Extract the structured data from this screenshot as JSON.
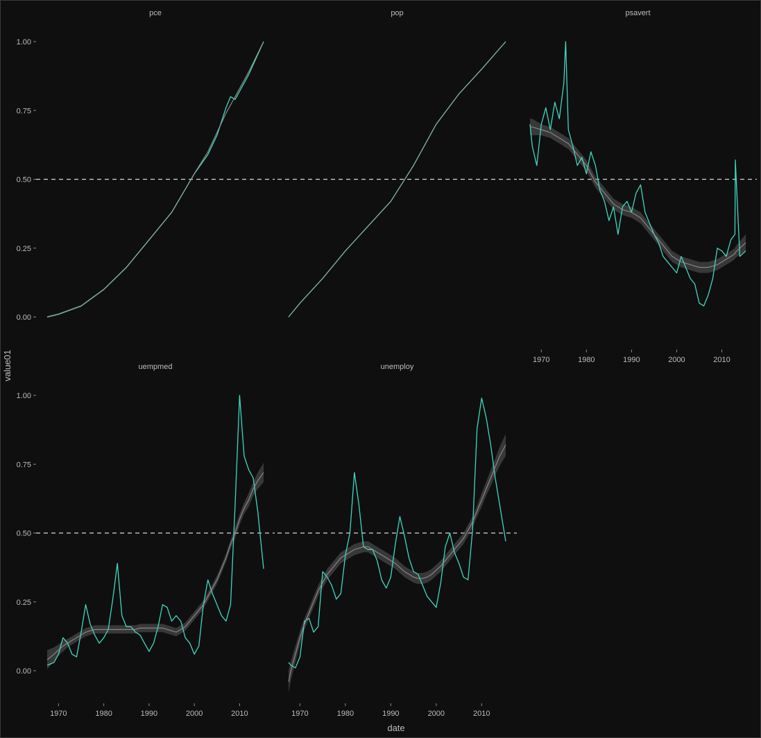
{
  "chart_data": {
    "type": "line",
    "xlabel": "date",
    "ylabel": "value01",
    "ylim": [
      0,
      1
    ],
    "y_ticks": [
      0,
      0.25,
      0.5,
      0.75,
      1
    ],
    "y_tick_labels": [
      "0.00",
      "0.25",
      "0.50",
      "0.75",
      "1.00"
    ],
    "x_ticks": [
      1970,
      1980,
      1990,
      2000,
      2010
    ],
    "x_tick_labels": [
      "1970",
      "1980",
      "1990",
      "2000",
      "2010"
    ],
    "xlim": [
      1967.5,
      2015.3
    ],
    "reference_line_y": 0.5,
    "grid": false,
    "legend": "none",
    "colors": {
      "background": "#0f0f0f",
      "line": "#3fd9c0",
      "smooth": "#9a9a9a",
      "band": "#6a6a6a",
      "ref": "#d9d9d9",
      "text": "#bdbdbd"
    },
    "panels": [
      {
        "strip": "pce",
        "x": [
          1967.5,
          1970,
          1975,
          1980,
          1985,
          1990,
          1995,
          2000,
          2003,
          2005,
          2007,
          2008,
          2009,
          2010,
          2012,
          2015.3
        ],
        "values": [
          0.0,
          0.01,
          0.04,
          0.1,
          0.18,
          0.28,
          0.38,
          0.52,
          0.59,
          0.66,
          0.76,
          0.8,
          0.79,
          0.82,
          0.88,
          1.0
        ],
        "smooth": [
          0.0,
          0.01,
          0.04,
          0.1,
          0.18,
          0.28,
          0.38,
          0.52,
          0.6,
          0.67,
          0.74,
          0.77,
          0.8,
          0.83,
          0.89,
          1.0
        ],
        "band": [
          0.003,
          0.003,
          0.003,
          0.003,
          0.003,
          0.003,
          0.003,
          0.003,
          0.003,
          0.003,
          0.003,
          0.003,
          0.003,
          0.003,
          0.003,
          0.003
        ]
      },
      {
        "strip": "pop",
        "x": [
          1967.5,
          1970,
          1975,
          1980,
          1985,
          1990,
          1995,
          2000,
          2005,
          2010,
          2015.3
        ],
        "values": [
          0.0,
          0.05,
          0.14,
          0.24,
          0.33,
          0.42,
          0.55,
          0.7,
          0.81,
          0.9,
          1.0
        ],
        "smooth": [
          0.0,
          0.05,
          0.14,
          0.24,
          0.33,
          0.42,
          0.55,
          0.7,
          0.81,
          0.9,
          1.0
        ],
        "band": [
          0.002,
          0.002,
          0.002,
          0.002,
          0.002,
          0.002,
          0.002,
          0.002,
          0.002,
          0.002,
          0.002
        ]
      },
      {
        "strip": "psavert",
        "x": [
          1967.5,
          1968,
          1969,
          1970,
          1971,
          1972,
          1973,
          1974,
          1975,
          1975.4,
          1976,
          1977,
          1978,
          1979,
          1980,
          1981,
          1982,
          1983,
          1984,
          1985,
          1986,
          1987,
          1988,
          1989,
          1990,
          1991,
          1992,
          1993,
          1994,
          1995,
          1996,
          1997,
          1998,
          1999,
          2000,
          2001,
          2002,
          2003,
          2004,
          2005,
          2006,
          2007,
          2008,
          2009,
          2010,
          2011,
          2012,
          2012.9,
          2013,
          2014,
          2015.3
        ],
        "values": [
          0.7,
          0.62,
          0.55,
          0.7,
          0.76,
          0.68,
          0.78,
          0.72,
          0.85,
          1.0,
          0.68,
          0.62,
          0.55,
          0.58,
          0.52,
          0.6,
          0.55,
          0.46,
          0.42,
          0.35,
          0.4,
          0.3,
          0.4,
          0.42,
          0.38,
          0.45,
          0.48,
          0.38,
          0.34,
          0.3,
          0.27,
          0.22,
          0.2,
          0.18,
          0.16,
          0.22,
          0.18,
          0.14,
          0.12,
          0.05,
          0.04,
          0.08,
          0.14,
          0.25,
          0.24,
          0.22,
          0.28,
          0.3,
          0.57,
          0.22,
          0.24
        ],
        "smooth": [
          0.69,
          0.69,
          0.685,
          0.68,
          0.675,
          0.67,
          0.66,
          0.65,
          0.64,
          0.635,
          0.63,
          0.61,
          0.59,
          0.57,
          0.55,
          0.52,
          0.49,
          0.47,
          0.45,
          0.43,
          0.41,
          0.4,
          0.39,
          0.385,
          0.38,
          0.37,
          0.36,
          0.34,
          0.32,
          0.3,
          0.28,
          0.26,
          0.24,
          0.22,
          0.21,
          0.2,
          0.195,
          0.19,
          0.185,
          0.18,
          0.18,
          0.18,
          0.185,
          0.19,
          0.2,
          0.21,
          0.22,
          0.23,
          0.235,
          0.25,
          0.27
        ],
        "band": [
          0.03,
          0.03,
          0.025,
          0.02,
          0.02,
          0.02,
          0.02,
          0.02,
          0.02,
          0.02,
          0.02,
          0.02,
          0.02,
          0.02,
          0.02,
          0.02,
          0.02,
          0.02,
          0.02,
          0.02,
          0.02,
          0.02,
          0.02,
          0.02,
          0.02,
          0.02,
          0.02,
          0.02,
          0.02,
          0.02,
          0.02,
          0.02,
          0.02,
          0.02,
          0.02,
          0.02,
          0.02,
          0.02,
          0.02,
          0.02,
          0.02,
          0.02,
          0.02,
          0.02,
          0.02,
          0.02,
          0.02,
          0.02,
          0.02,
          0.025,
          0.03
        ]
      },
      {
        "strip": "uempmed",
        "x": [
          1967.5,
          1969,
          1970,
          1971,
          1972,
          1973,
          1974,
          1975,
          1976,
          1977,
          1978,
          1979,
          1980,
          1981,
          1982,
          1983,
          1984,
          1985,
          1986,
          1987,
          1988,
          1989,
          1990,
          1991,
          1992,
          1993,
          1994,
          1995,
          1996,
          1997,
          1998,
          1999,
          2000,
          2001,
          2002,
          2003,
          2004,
          2005,
          2006,
          2007,
          2008,
          2009,
          2010,
          2011,
          2012,
          2013,
          2014,
          2015.3
        ],
        "values": [
          0.02,
          0.03,
          0.06,
          0.12,
          0.1,
          0.06,
          0.05,
          0.14,
          0.24,
          0.17,
          0.13,
          0.1,
          0.12,
          0.15,
          0.26,
          0.39,
          0.2,
          0.16,
          0.16,
          0.14,
          0.13,
          0.1,
          0.07,
          0.1,
          0.16,
          0.24,
          0.23,
          0.18,
          0.2,
          0.18,
          0.12,
          0.1,
          0.06,
          0.09,
          0.24,
          0.33,
          0.28,
          0.24,
          0.2,
          0.18,
          0.24,
          0.6,
          1.0,
          0.78,
          0.73,
          0.7,
          0.58,
          0.37
        ],
        "smooth": [
          0.04,
          0.06,
          0.075,
          0.09,
          0.1,
          0.11,
          0.12,
          0.13,
          0.14,
          0.145,
          0.15,
          0.15,
          0.15,
          0.15,
          0.15,
          0.15,
          0.15,
          0.15,
          0.15,
          0.15,
          0.155,
          0.155,
          0.155,
          0.155,
          0.155,
          0.155,
          0.15,
          0.145,
          0.14,
          0.15,
          0.16,
          0.18,
          0.2,
          0.22,
          0.24,
          0.27,
          0.3,
          0.33,
          0.37,
          0.41,
          0.46,
          0.5,
          0.55,
          0.59,
          0.62,
          0.66,
          0.69,
          0.72
        ],
        "band": [
          0.035,
          0.025,
          0.02,
          0.02,
          0.015,
          0.015,
          0.015,
          0.015,
          0.015,
          0.015,
          0.015,
          0.015,
          0.015,
          0.015,
          0.015,
          0.015,
          0.015,
          0.015,
          0.015,
          0.015,
          0.015,
          0.015,
          0.015,
          0.015,
          0.015,
          0.015,
          0.015,
          0.015,
          0.015,
          0.015,
          0.015,
          0.015,
          0.015,
          0.015,
          0.015,
          0.015,
          0.015,
          0.015,
          0.015,
          0.015,
          0.015,
          0.02,
          0.02,
          0.02,
          0.025,
          0.025,
          0.03,
          0.035
        ]
      },
      {
        "strip": "unemploy",
        "x": [
          1967.5,
          1968,
          1969,
          1970,
          1971,
          1972,
          1973,
          1974,
          1975,
          1976,
          1977,
          1978,
          1979,
          1980,
          1981,
          1982,
          1983,
          1984,
          1985,
          1986,
          1987,
          1988,
          1989,
          1990,
          1991,
          1992,
          1993,
          1994,
          1995,
          1996,
          1997,
          1998,
          1999,
          2000,
          2001,
          2002,
          2003,
          2004,
          2005,
          2006,
          2007,
          2008,
          2009,
          2010,
          2011,
          2012,
          2013,
          2014,
          2015.3
        ],
        "values": [
          0.03,
          0.02,
          0.01,
          0.05,
          0.18,
          0.19,
          0.14,
          0.16,
          0.36,
          0.34,
          0.31,
          0.26,
          0.28,
          0.42,
          0.5,
          0.72,
          0.6,
          0.45,
          0.44,
          0.44,
          0.4,
          0.33,
          0.3,
          0.34,
          0.46,
          0.56,
          0.49,
          0.41,
          0.36,
          0.35,
          0.31,
          0.27,
          0.25,
          0.23,
          0.32,
          0.45,
          0.5,
          0.43,
          0.39,
          0.34,
          0.33,
          0.51,
          0.88,
          0.99,
          0.92,
          0.82,
          0.7,
          0.6,
          0.47
        ],
        "smooth": [
          -0.04,
          0.0,
          0.06,
          0.12,
          0.17,
          0.21,
          0.25,
          0.29,
          0.32,
          0.35,
          0.37,
          0.39,
          0.41,
          0.42,
          0.43,
          0.44,
          0.445,
          0.45,
          0.45,
          0.44,
          0.43,
          0.42,
          0.41,
          0.4,
          0.39,
          0.375,
          0.36,
          0.35,
          0.34,
          0.335,
          0.335,
          0.34,
          0.35,
          0.365,
          0.38,
          0.4,
          0.42,
          0.44,
          0.46,
          0.48,
          0.51,
          0.54,
          0.58,
          0.62,
          0.66,
          0.7,
          0.74,
          0.78,
          0.82
        ],
        "band": [
          0.04,
          0.035,
          0.03,
          0.025,
          0.02,
          0.02,
          0.02,
          0.02,
          0.02,
          0.02,
          0.02,
          0.02,
          0.02,
          0.02,
          0.02,
          0.02,
          0.02,
          0.02,
          0.02,
          0.02,
          0.02,
          0.02,
          0.02,
          0.02,
          0.02,
          0.02,
          0.02,
          0.02,
          0.02,
          0.02,
          0.02,
          0.02,
          0.02,
          0.02,
          0.02,
          0.02,
          0.02,
          0.02,
          0.02,
          0.02,
          0.02,
          0.02,
          0.02,
          0.025,
          0.025,
          0.03,
          0.03,
          0.035,
          0.04
        ]
      }
    ]
  }
}
